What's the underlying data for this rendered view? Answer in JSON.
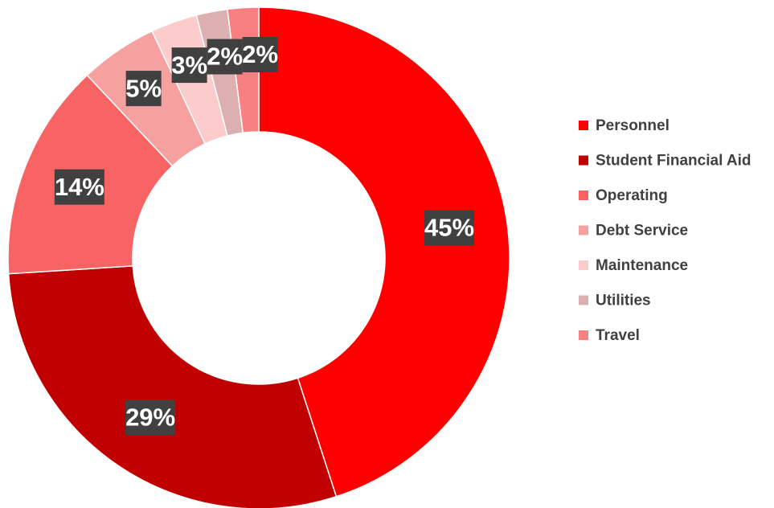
{
  "chart_data": {
    "type": "pie",
    "categories": [
      "Personnel",
      "Student Financial Aid",
      "Operating",
      "Debt Service",
      "Maintenance",
      "Utilities",
      "Travel"
    ],
    "values": [
      45,
      29,
      14,
      5,
      3,
      2,
      2
    ],
    "value_labels": [
      "45%",
      "29%",
      "14%",
      "5%",
      "3%",
      "2%",
      "2%"
    ],
    "colors": [
      "#ff0000",
      "#c00000",
      "#f86464",
      "#f7a0a0",
      "#fccccc",
      "#dcb0b0",
      "#f98080"
    ],
    "legend": "right"
  }
}
